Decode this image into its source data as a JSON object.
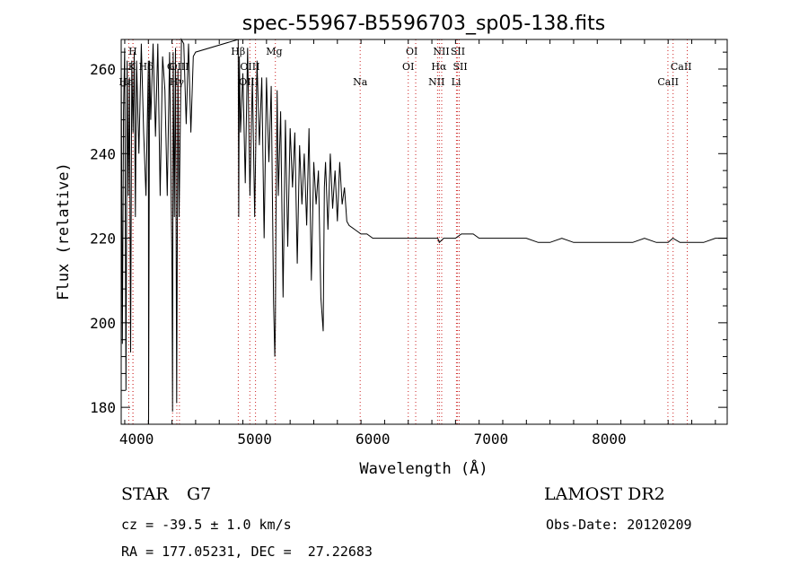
{
  "chart_data": {
    "type": "line",
    "title": "spec-55967-B5596703_sp05-138.fits",
    "xlabel": "Wavelength (Å)",
    "ylabel": "Flux (relative)",
    "xlim": [
      3870,
      9000
    ],
    "ylim": [
      176,
      267
    ],
    "x_ticks": [
      4000,
      5000,
      6000,
      7000,
      8000
    ],
    "y_ticks": [
      180,
      200,
      220,
      240,
      260
    ],
    "grid": false,
    "series": [
      {
        "x": [
          3870,
          3880,
          3890,
          3900,
          3910,
          3920,
          3930,
          3940,
          3950,
          3960,
          3970,
          3980,
          3990,
          4000,
          4020,
          4040,
          4060,
          4080,
          4100,
          4102,
          4110,
          4120,
          4140,
          4160,
          4180,
          4200,
          4220,
          4240,
          4260,
          4280,
          4300,
          4305,
          4310,
          4320,
          4330,
          4340,
          4350,
          4360,
          4380,
          4400,
          4420,
          4440,
          4460,
          4480,
          4500,
          4860,
          4865,
          4870,
          4880,
          4900,
          4920,
          4940,
          4960,
          4980,
          5000,
          5020,
          5040,
          5060,
          5080,
          5100,
          5120,
          5140,
          5160,
          5170,
          5175,
          5180,
          5190,
          5200,
          5220,
          5240,
          5260,
          5280,
          5300,
          5320,
          5340,
          5360,
          5380,
          5400,
          5420,
          5440,
          5460,
          5480,
          5500,
          5520,
          5540,
          5560,
          5580,
          5590,
          5600,
          5620,
          5640,
          5660,
          5680,
          5700,
          5720,
          5740,
          5760,
          5780,
          5800,
          5850,
          5900,
          5950,
          6000,
          6050,
          6100,
          6150,
          6200,
          6250,
          6300,
          6350,
          6400,
          6450,
          6500,
          6550,
          6563,
          6600,
          6650,
          6700,
          6750,
          6800,
          6850,
          6900,
          6950,
          7000,
          7100,
          7200,
          7300,
          7400,
          7500,
          7600,
          7700,
          7800,
          7900,
          8000,
          8100,
          8200,
          8300,
          8400,
          8500,
          8540,
          8600,
          8700,
          8800,
          8900,
          9000
        ],
        "y": [
          262,
          195,
          250,
          265,
          184,
          262,
          230,
          258,
          193,
          262,
          245,
          264,
          225,
          262,
          240,
          266,
          245,
          230,
          262,
          176,
          262,
          248,
          266,
          244,
          266,
          230,
          263,
          255,
          230,
          264,
          212,
          179,
          264,
          225,
          265,
          181,
          260,
          225,
          267,
          266,
          247,
          266,
          245,
          263,
          264,
          267,
          225,
          263,
          245,
          259,
          233,
          265,
          230,
          258,
          225,
          262,
          242,
          258,
          220,
          258,
          238,
          256,
          205,
          192,
          199,
          225,
          255,
          230,
          250,
          206,
          248,
          218,
          246,
          232,
          245,
          214,
          242,
          228,
          240,
          223,
          246,
          210,
          238,
          228,
          236,
          206,
          198,
          232,
          238,
          222,
          240,
          227,
          236,
          224,
          238,
          228,
          232,
          224,
          223,
          222,
          221,
          221,
          220,
          220,
          220,
          220,
          220,
          220,
          220,
          220,
          220,
          220,
          220,
          220,
          219,
          220,
          220,
          220,
          221,
          221,
          221,
          220,
          220,
          220,
          220,
          220,
          220,
          219,
          219,
          220,
          219,
          219,
          219,
          219,
          219,
          219,
          220,
          219,
          219,
          220,
          219,
          219,
          219,
          220,
          220
        ]
      }
    ],
    "line_labels": [
      {
        "label": "Hε",
        "wavelength": 3970
      },
      {
        "label": "H",
        "wavelength": 3969
      },
      {
        "label": "K",
        "wavelength": 3934
      },
      {
        "label": "Hδ",
        "wavelength": 4102
      },
      {
        "label": "Hγ",
        "wavelength": 4341
      },
      {
        "label": "G",
        "wavelength": 4305
      },
      {
        "label": "OIII",
        "wavelength": 4363
      },
      {
        "label": "Hβ",
        "wavelength": 4861
      },
      {
        "label": "OIII",
        "wavelength": 4959
      },
      {
        "label": "OIII",
        "wavelength": 5007
      },
      {
        "label": "Mg",
        "wavelength": 5175
      },
      {
        "label": "Na",
        "wavelength": 5893
      },
      {
        "label": "OI",
        "wavelength": 6300
      },
      {
        "label": "OI",
        "wavelength": 6363
      },
      {
        "label": "NII",
        "wavelength": 6548
      },
      {
        "label": "Hα",
        "wavelength": 6563
      },
      {
        "label": "NII",
        "wavelength": 6583
      },
      {
        "label": "SII",
        "wavelength": 6717
      },
      {
        "label": "Li",
        "wavelength": 6708
      },
      {
        "label": "SII",
        "wavelength": 6731
      },
      {
        "label": "CaII",
        "wavelength": 8498
      },
      {
        "label": "CaII",
        "wavelength": 8542
      },
      {
        "label": "CaII",
        "wavelength": 8662
      }
    ]
  },
  "info": {
    "class": "STAR",
    "subclass": "G7",
    "cz": "cz = -39.5 ± 1.0 km/s",
    "radec": "RA = 177.05231, DEC =  27.22683",
    "survey": "LAMOST DR2",
    "obs_date": "Obs-Date: 20120209"
  },
  "colors": {
    "line": "#000000",
    "marker_line": "#cc2222",
    "background": "#ffffff"
  }
}
